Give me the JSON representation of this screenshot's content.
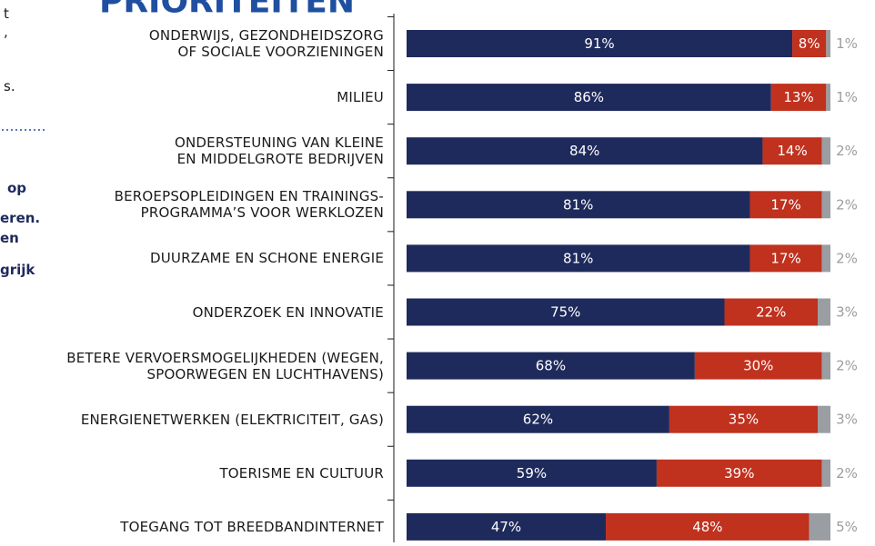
{
  "heading": "PRIORITEITEN",
  "side_fragments": [
    "t",
    ",",
    "s.",
    "op",
    "eren.",
    "en",
    "grijk"
  ],
  "chart_data": {
    "type": "stacked-bar-horizontal",
    "categories": [
      "ONDERWIJS, GEZONDHEIDSZORG\nOF SOCIALE VOORZIENINGEN",
      "MILIEU",
      "ONDERSTEUNING VAN KLEINE\nEN MIDDELGROTE BEDRIJVEN",
      "BEROEPSOPLEIDINGEN EN TRAININGS-\nPROGRAMMA’S VOOR WERKLOZEN",
      "DUURZAME EN SCHONE ENERGIE",
      "ONDERZOEK EN INNOVATIE",
      "BETERE VERVOERSMOGELIJKHEDEN (WEGEN,\nSPOORWEGEN EN LUCHTHAVENS)",
      "ENERGIENETWERKEN (ELEKTRICITEIT, GAS)",
      "TOERISME EN CULTUUR",
      "TOEGANG TOT BREEDBANDINTERNET"
    ],
    "xlim": [
      0,
      100
    ],
    "series": [
      {
        "color": "#1f2a5c",
        "values": [
          91,
          86,
          84,
          81,
          81,
          75,
          68,
          62,
          59,
          47
        ],
        "value_labels": [
          "91%",
          "86%",
          "84%",
          "81%",
          "81%",
          "75%",
          "68%",
          "62%",
          "59%",
          "47%"
        ]
      },
      {
        "color": "#c0311e",
        "values": [
          8,
          13,
          14,
          17,
          17,
          22,
          30,
          35,
          39,
          48
        ],
        "value_labels": [
          "8%",
          "13%",
          "14%",
          "17%",
          "17%",
          "22%",
          "30%",
          "35%",
          "39%",
          "48%"
        ]
      },
      {
        "color": "#9a9ea3",
        "values": [
          1,
          1,
          2,
          2,
          2,
          3,
          2,
          3,
          2,
          5
        ],
        "value_labels": [
          "1%",
          "1%",
          "2%",
          "2%",
          "2%",
          "3%",
          "2%",
          "3%",
          "2%",
          "5%"
        ]
      }
    ]
  }
}
